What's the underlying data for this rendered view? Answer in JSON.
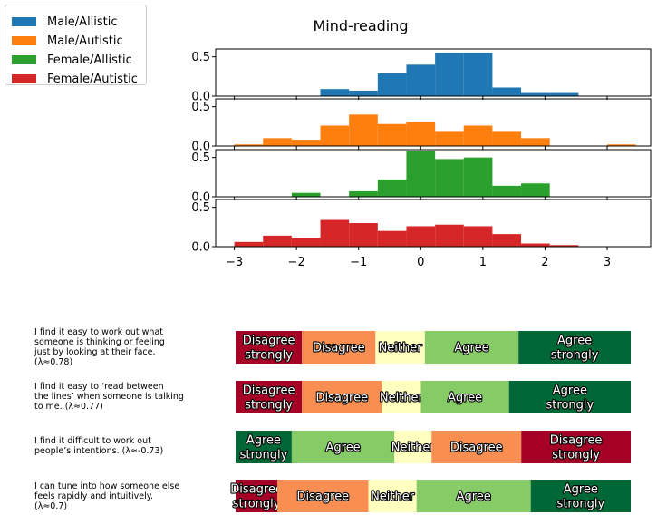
{
  "chart_data": [
    {
      "type": "histogram",
      "title": "Mind-reading",
      "xlim": [
        -3.3,
        3.7
      ],
      "xticks": [
        -3,
        -2,
        -1,
        0,
        1,
        2,
        3
      ],
      "yticks": [
        0.0,
        0.5
      ],
      "ylim": [
        0,
        0.6
      ],
      "bin_edges": [
        -3.0,
        -2.538,
        -2.077,
        -1.615,
        -1.154,
        -0.692,
        -0.231,
        0.231,
        0.692,
        1.154,
        1.615,
        2.077,
        2.538,
        3.0,
        3.462
      ],
      "legend": {
        "placement": "top-left"
      },
      "series": [
        {
          "name": "Male/Allistic",
          "color": "#1f77b4",
          "values": [
            0,
            0,
            0,
            0.09,
            0.07,
            0.29,
            0.4,
            0.55,
            0.55,
            0.11,
            0.04,
            0.04,
            0,
            0
          ]
        },
        {
          "name": "Male/Autistic",
          "color": "#ff7f0e",
          "values": [
            0.02,
            0.1,
            0.08,
            0.26,
            0.4,
            0.28,
            0.3,
            0.18,
            0.26,
            0.18,
            0.1,
            0,
            0,
            0.02
          ]
        },
        {
          "name": "Female/Allistic",
          "color": "#2ca02c",
          "values": [
            0,
            0,
            0.05,
            0,
            0.07,
            0.22,
            0.58,
            0.48,
            0.5,
            0.14,
            0.17,
            0,
            0,
            0
          ]
        },
        {
          "name": "Female/Autistic",
          "color": "#d62728",
          "values": [
            0.06,
            0.14,
            0.11,
            0.34,
            0.3,
            0.2,
            0.26,
            0.28,
            0.26,
            0.16,
            0.04,
            0.02,
            0,
            0
          ]
        }
      ]
    },
    {
      "type": "stacked-bar",
      "category_colors": {
        "Disagree strongly": "#a50026",
        "Disagree": "#f98e52",
        "Neither": "#ffffbf",
        "Agree": "#86cb66",
        "Agree strongly": "#006837"
      },
      "rows": [
        {
          "question": "I find it easy to work out what\nsomeone is thinking or feeling\njust by looking at their face.\n(λ≈0.78)",
          "segments": [
            {
              "label": "Disagree\nstrongly",
              "category": "Disagree strongly",
              "share": 0.168
            },
            {
              "label": "Disagree",
              "category": "Disagree",
              "share": 0.186
            },
            {
              "label": "Neither",
              "category": "Neither",
              "share": 0.125
            },
            {
              "label": "Agree",
              "category": "Agree",
              "share": 0.237
            },
            {
              "label": "Agree\nstrongly",
              "category": "Agree strongly",
              "share": 0.284
            }
          ]
        },
        {
          "question": "I find it easy to ‘read between\nthe lines’ when someone is talking\nto me. (λ≈0.77)",
          "segments": [
            {
              "label": "Disagree\nstrongly",
              "category": "Disagree strongly",
              "share": 0.168
            },
            {
              "label": "Disagree",
              "category": "Disagree",
              "share": 0.202
            },
            {
              "label": "Neither",
              "category": "Neither",
              "share": 0.099
            },
            {
              "label": "Agree",
              "category": "Agree",
              "share": 0.223
            },
            {
              "label": "Agree\nstrongly",
              "category": "Agree strongly",
              "share": 0.308
            }
          ]
        },
        {
          "question": "I find it difficult to work out\npeople’s intentions. (λ≈-0.73)",
          "segments": [
            {
              "label": "Agree\nstrongly",
              "category": "Agree strongly",
              "share": 0.142
            },
            {
              "label": "Agree",
              "category": "Agree",
              "share": 0.26
            },
            {
              "label": "Neither",
              "category": "Neither",
              "share": 0.094
            },
            {
              "label": "Disagree",
              "category": "Disagree",
              "share": 0.227
            },
            {
              "label": "Disagree\nstrongly",
              "category": "Disagree strongly",
              "share": 0.277
            }
          ]
        },
        {
          "question": "I can tune into how someone else\nfeels rapidly and intuitively.\n(λ≈0.7)",
          "segments": [
            {
              "label": "Disagree\nstrongly",
              "category": "Disagree strongly",
              "share": 0.106
            },
            {
              "label": "Disagree",
              "category": "Disagree",
              "share": 0.23
            },
            {
              "label": "Neither",
              "category": "Neither",
              "share": 0.122
            },
            {
              "label": "Agree",
              "category": "Agree",
              "share": 0.289
            },
            {
              "label": "Agree\nstrongly",
              "category": "Agree strongly",
              "share": 0.253
            }
          ]
        }
      ]
    }
  ]
}
